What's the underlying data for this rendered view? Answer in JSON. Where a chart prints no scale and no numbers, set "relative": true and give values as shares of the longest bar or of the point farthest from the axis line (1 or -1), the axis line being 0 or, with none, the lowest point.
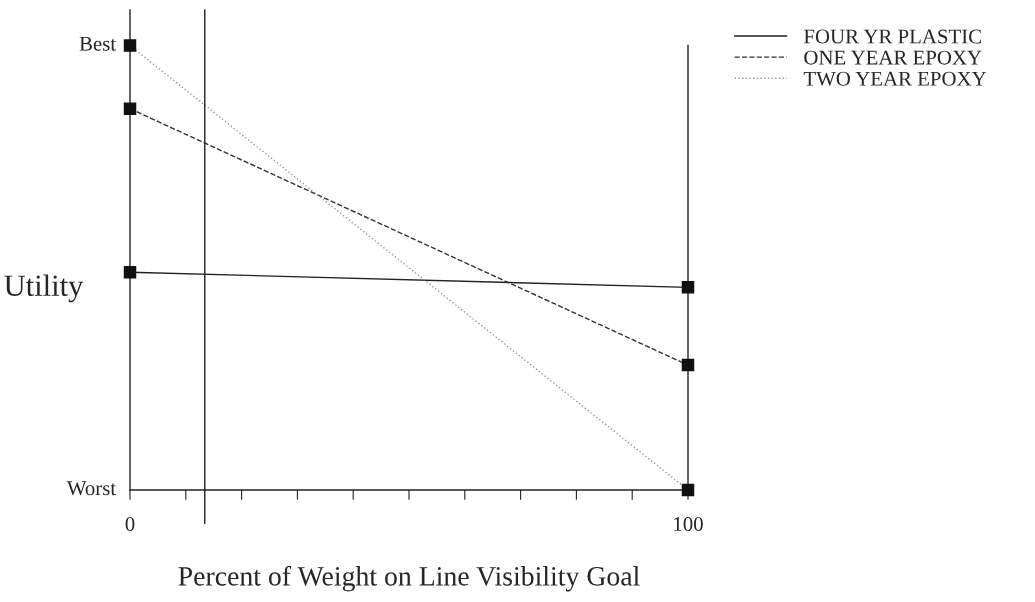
{
  "chart_data": {
    "type": "line",
    "xlabel": "Percent of Weight on Line Visibility Goal",
    "ylabel": "Utility",
    "x": [
      0,
      100
    ],
    "series": [
      {
        "name": "FOUR YR PLASTIC",
        "color": "#222222",
        "line_style": "solid",
        "values": [
          0.49,
          0.456
        ]
      },
      {
        "name": "ONE YEAR EPOXY",
        "color": "#333333",
        "line_style": "dashed",
        "values": [
          0.858,
          0.281
        ]
      },
      {
        "name": "TWO YEAR EPOXY",
        "color": "#9a9a9a",
        "line_style": "dotted",
        "values": [
          1.0,
          0.0
        ]
      }
    ],
    "xlim": [
      0,
      100
    ],
    "relative": true,
    "annotations": [
      {
        "text": "Best",
        "x": 0,
        "y": 1.0
      },
      "Worst"
    ],
    "xticks": [
      0,
      {
        "value": 10,
        "label": null
      },
      {
        "value": 20,
        "label": null
      },
      {
        "value": 30,
        "label": null
      },
      {
        "value": 40,
        "label": null
      },
      {
        "value": 50,
        "label": null
      },
      {
        "value": 60,
        "label": null
      },
      {
        "value": 70,
        "label": null
      },
      {
        "value": 80,
        "label": null
      },
      {
        "value": 90,
        "label": null
      },
      100
    ],
    "ref_lines": [
      {
        "axis": "x",
        "value": 13.4,
        "color": "#222222"
      }
    ],
    "marker": "square",
    "legend": "top right",
    "grid": false
  }
}
